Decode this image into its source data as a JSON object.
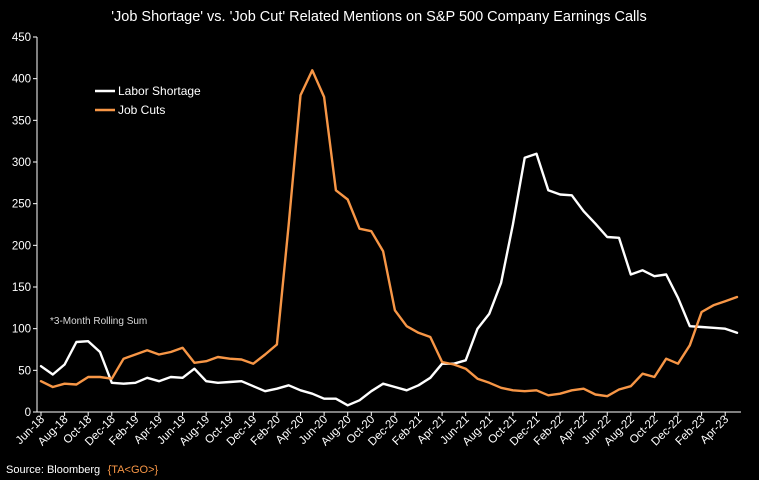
{
  "chart_data": {
    "type": "line",
    "title": "'Job Shortage' vs. 'Job Cut' Related Mentions on S&P 500 Company Earnings Calls",
    "xlabel": "",
    "ylabel": "",
    "ylim": [
      0,
      450
    ],
    "yticks": [
      0,
      50,
      100,
      150,
      200,
      250,
      300,
      350,
      400,
      450
    ],
    "xtick_labels": [
      "Jun-18",
      "Aug-18",
      "Oct-18",
      "Dec-18",
      "Feb-19",
      "Apr-19",
      "Jun-19",
      "Aug-19",
      "Oct-19",
      "Dec-19",
      "Feb-20",
      "Apr-20",
      "Jun-20",
      "Aug-20",
      "Oct-20",
      "Dec-20",
      "Feb-21",
      "Apr-21",
      "Jun-21",
      "Aug-21",
      "Oct-21",
      "Dec-21",
      "Feb-22",
      "Apr-22",
      "Jun-22",
      "Aug-22",
      "Oct-22",
      "Dec-22",
      "Feb-23",
      "Apr-23"
    ],
    "note": "*3-Month Rolling Sum",
    "legend_position": "top-left",
    "series": [
      {
        "name": "Labor Shortage",
        "color": "#ffffff",
        "values": [
          55,
          45,
          57,
          84,
          85,
          72,
          35,
          34,
          35,
          41,
          37,
          42,
          41,
          52,
          37,
          35,
          36,
          37,
          31,
          25,
          28,
          32,
          26,
          22,
          16,
          16,
          8,
          14,
          25,
          34,
          30,
          26,
          32,
          41,
          58,
          58,
          62,
          100,
          118,
          155,
          225,
          305,
          310,
          266,
          261,
          260,
          241,
          226,
          210,
          209,
          165,
          170,
          163,
          165,
          137,
          103,
          102,
          101,
          100,
          95
        ]
      },
      {
        "name": "Job Cuts",
        "color": "#f79646",
        "values": [
          37,
          30,
          34,
          33,
          42,
          42,
          40,
          64,
          69,
          74,
          69,
          72,
          77,
          59,
          61,
          66,
          64,
          63,
          58,
          69,
          81,
          225,
          380,
          410,
          378,
          266,
          255,
          220,
          217,
          193,
          122,
          103,
          95,
          90,
          60,
          57,
          52,
          40,
          35,
          29,
          26,
          25,
          26,
          20,
          22,
          26,
          28,
          21,
          19,
          27,
          31,
          46,
          42,
          64,
          58,
          80,
          120,
          128,
          133,
          138
        ]
      }
    ],
    "source": {
      "label": "Source: Bloomberg",
      "function": "{TA<GO>}"
    }
  }
}
